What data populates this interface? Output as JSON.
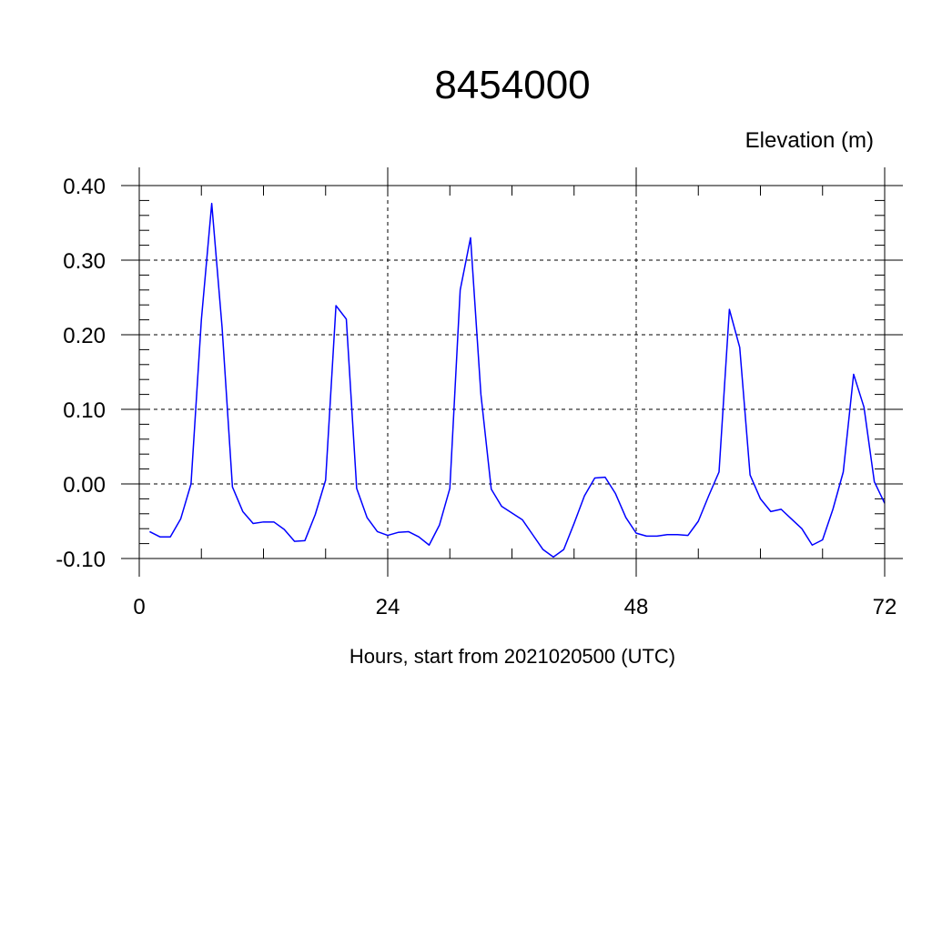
{
  "chart_data": {
    "type": "line",
    "title": "8454000",
    "subtitle": "Elevation (m)",
    "xlabel": "Hours, start from 2021020500 (UTC)",
    "ylabel": "",
    "xlim": [
      0,
      72
    ],
    "ylim": [
      -0.1,
      0.4
    ],
    "xticks": [
      0,
      24,
      48,
      72
    ],
    "xtick_labels": [
      "0",
      "24",
      "48",
      "72"
    ],
    "yticks": [
      -0.1,
      0.0,
      0.1,
      0.2,
      0.3,
      0.4
    ],
    "ytick_labels": [
      "-0.10",
      "0.00",
      "0.10",
      "0.20",
      "0.30",
      "0.40"
    ],
    "grid": true,
    "grid_style": "dashed",
    "colors": {
      "line": "#0000ff",
      "axes": "#000000"
    },
    "series": [
      {
        "x": [
          1,
          2,
          3,
          4,
          5,
          6,
          7,
          8,
          9,
          10,
          11,
          12,
          13,
          14,
          15,
          16,
          17,
          18,
          19,
          20,
          21,
          22,
          23,
          24,
          25,
          26,
          27,
          28,
          29,
          30,
          31,
          32,
          33,
          34,
          35,
          36,
          37,
          38,
          39,
          40,
          41,
          42,
          43,
          44,
          45,
          46,
          47,
          48,
          49,
          50,
          51,
          52,
          53,
          54,
          55,
          56,
          57,
          58,
          59,
          60,
          61,
          62,
          63,
          64,
          65,
          66,
          67,
          68,
          69,
          70,
          71,
          72
        ],
        "y": [
          -0.064,
          -0.071,
          -0.071,
          -0.047,
          0.0,
          0.22,
          0.376,
          0.21,
          -0.004,
          -0.037,
          -0.053,
          -0.051,
          -0.051,
          -0.061,
          -0.077,
          -0.076,
          -0.041,
          0.005,
          0.239,
          0.221,
          -0.006,
          -0.045,
          -0.064,
          -0.069,
          -0.065,
          -0.064,
          -0.071,
          -0.082,
          -0.055,
          -0.006,
          0.26,
          0.33,
          0.12,
          -0.007,
          -0.03,
          -0.039,
          -0.048,
          -0.068,
          -0.088,
          -0.098,
          -0.088,
          -0.053,
          -0.016,
          0.008,
          0.009,
          -0.013,
          -0.045,
          -0.066,
          -0.07,
          -0.07,
          -0.068,
          -0.068,
          -0.069,
          -0.05,
          -0.016,
          0.016,
          0.234,
          0.183,
          0.012,
          -0.02,
          -0.037,
          -0.034,
          -0.047,
          -0.06,
          -0.082,
          -0.075,
          -0.034,
          0.016,
          0.147,
          0.103,
          0.003,
          -0.026
        ]
      }
    ]
  }
}
